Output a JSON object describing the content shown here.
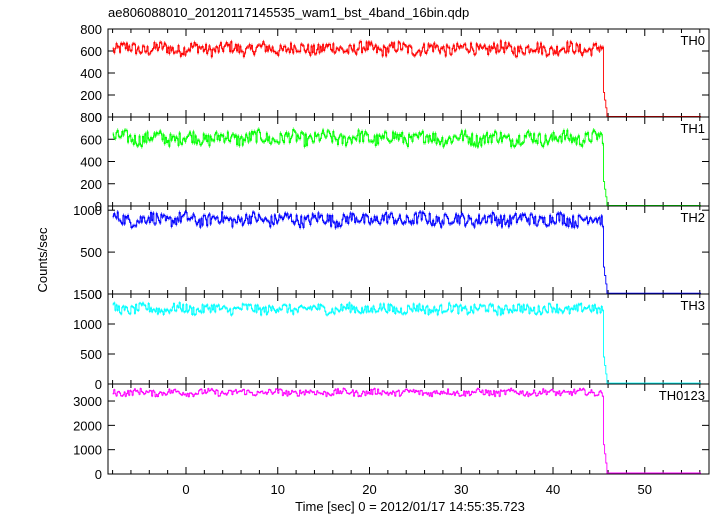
{
  "figure": {
    "title": "ae806088010_20120117145535_wam1_bst_4band_16bin.qdp",
    "xlabel": "Time [sec] 0 = 2012/01/17 14:55:35.723",
    "ylabel": "Counts/sec"
  },
  "chart_data": [
    {
      "type": "line",
      "panel_label": "TH0",
      "color": "#ff0000",
      "xlim": [
        -8.5,
        57
      ],
      "ylim": [
        0,
        800
      ],
      "yticks": [
        0,
        200,
        400,
        600,
        800
      ],
      "xticks": [
        0,
        10,
        20,
        30,
        40,
        50
      ],
      "pre_level": 620,
      "pre_variation": 55,
      "drop_time": 45.4,
      "post_level": 5,
      "start_time": -8.0,
      "end_time": 56.0
    },
    {
      "type": "line",
      "panel_label": "TH1",
      "color": "#00ff00",
      "xlim": [
        -8.5,
        57
      ],
      "ylim": [
        0,
        800
      ],
      "yticks": [
        0,
        200,
        400,
        600,
        800
      ],
      "xticks": [
        0,
        10,
        20,
        30,
        40,
        50
      ],
      "pre_level": 610,
      "pre_variation": 60,
      "drop_time": 45.4,
      "post_level": 5,
      "start_time": -8.0,
      "end_time": 56.0
    },
    {
      "type": "line",
      "panel_label": "TH2",
      "color": "#0000ff",
      "xlim": [
        -8.5,
        57
      ],
      "ylim": [
        0,
        1050
      ],
      "yticks": [
        0,
        500,
        1000
      ],
      "xticks": [
        0,
        10,
        20,
        30,
        40,
        50
      ],
      "pre_level": 890,
      "pre_variation": 75,
      "drop_time": 45.4,
      "post_level": 10,
      "start_time": -8.0,
      "end_time": 56.0
    },
    {
      "type": "line",
      "panel_label": "TH3",
      "color": "#00ffff",
      "xlim": [
        -8.5,
        57
      ],
      "ylim": [
        0,
        1500
      ],
      "yticks": [
        0,
        500,
        1000,
        1500
      ],
      "xticks": [
        0,
        10,
        20,
        30,
        40,
        50
      ],
      "pre_level": 1250,
      "pre_variation": 80,
      "drop_time": 45.4,
      "post_level": 15,
      "start_time": -8.0,
      "end_time": 56.0
    },
    {
      "type": "line",
      "panel_label": "TH0123",
      "color": "#ff00ff",
      "xlim": [
        -8.5,
        57
      ],
      "ylim": [
        0,
        3700
      ],
      "yticks": [
        0,
        1000,
        2000,
        3000
      ],
      "xticks": [
        0,
        10,
        20,
        30,
        40,
        50
      ],
      "pre_level": 3350,
      "pre_variation": 130,
      "drop_time": 45.4,
      "post_level": 40,
      "start_time": -8.0,
      "end_time": 56.0
    }
  ]
}
